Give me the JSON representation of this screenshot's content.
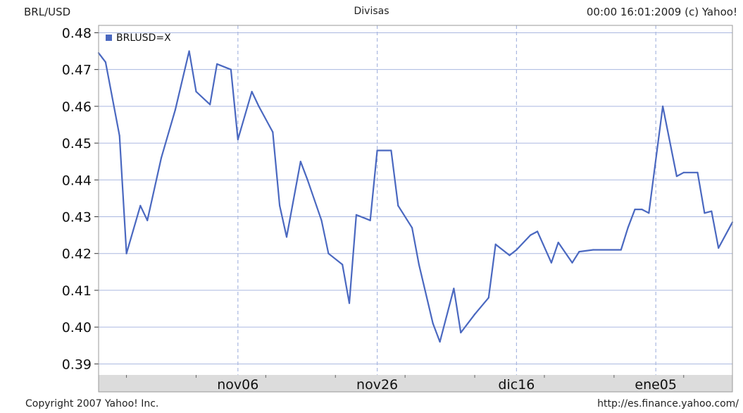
{
  "header": {
    "left": "BRL/USD",
    "center": "Divisas",
    "right": "00:00 16:01:2009 (c) Yahoo!"
  },
  "footer": {
    "left": "Copyright 2007 Yahoo! Inc.",
    "right": "http://es.finance.yahoo.com/"
  },
  "colors": {
    "line": "#4a68c0",
    "grid": "#aab8e0",
    "axis_band": "#dcdcdc",
    "frame": "#999999"
  },
  "chart_data": {
    "type": "line",
    "ylabel": "BRL/USD",
    "ylim": [
      0.387,
      0.482
    ],
    "yticks": [
      0.39,
      0.4,
      0.41,
      0.42,
      0.43,
      0.44,
      0.45,
      0.46,
      0.47,
      0.48
    ],
    "ytick_labels": [
      "0.39",
      "0.40",
      "0.41",
      "0.42",
      "0.43",
      "0.44",
      "0.45",
      "0.46",
      "0.47",
      "0.48"
    ],
    "xlim": [
      "2008-10-17",
      "2009-01-16"
    ],
    "xticks": [
      "2008-11-06",
      "2008-11-26",
      "2008-12-16",
      "2009-01-05"
    ],
    "xtick_labels": [
      "nov06",
      "nov26",
      "dic16",
      "ene05"
    ],
    "grid": true,
    "legend_position": "top-left",
    "series": [
      {
        "name": "BRLUSD=X",
        "points": [
          [
            "2008-10-17",
            0.4745
          ],
          [
            "2008-10-18",
            0.472
          ],
          [
            "2008-10-20",
            0.452
          ],
          [
            "2008-10-21",
            0.42
          ],
          [
            "2008-10-23",
            0.433
          ],
          [
            "2008-10-24",
            0.429
          ],
          [
            "2008-10-26",
            0.446
          ],
          [
            "2008-10-28",
            0.459
          ],
          [
            "2008-10-30",
            0.475
          ],
          [
            "2008-10-31",
            0.464
          ],
          [
            "2008-11-02",
            0.4605
          ],
          [
            "2008-11-03",
            0.4715
          ],
          [
            "2008-11-05",
            0.47
          ],
          [
            "2008-11-06",
            0.451
          ],
          [
            "2008-11-08",
            0.464
          ],
          [
            "2008-11-09",
            0.46
          ],
          [
            "2008-11-11",
            0.453
          ],
          [
            "2008-11-12",
            0.433
          ],
          [
            "2008-11-13",
            0.4245
          ],
          [
            "2008-11-15",
            0.445
          ],
          [
            "2008-11-16",
            0.44
          ],
          [
            "2008-11-18",
            0.429
          ],
          [
            "2008-11-19",
            0.42
          ],
          [
            "2008-11-21",
            0.417
          ],
          [
            "2008-11-22",
            0.4065
          ],
          [
            "2008-11-23",
            0.4305
          ],
          [
            "2008-11-25",
            0.429
          ],
          [
            "2008-11-26",
            0.448
          ],
          [
            "2008-11-28",
            0.448
          ],
          [
            "2008-11-29",
            0.433
          ],
          [
            "2008-12-01",
            0.427
          ],
          [
            "2008-12-02",
            0.417
          ],
          [
            "2008-12-04",
            0.401
          ],
          [
            "2008-12-05",
            0.396
          ],
          [
            "2008-12-07",
            0.4105
          ],
          [
            "2008-12-08",
            0.3985
          ],
          [
            "2008-12-10",
            0.4035
          ],
          [
            "2008-12-12",
            0.408
          ],
          [
            "2008-12-13",
            0.4225
          ],
          [
            "2008-12-15",
            0.4195
          ],
          [
            "2008-12-16",
            0.421
          ],
          [
            "2008-12-18",
            0.425
          ],
          [
            "2008-12-19",
            0.426
          ],
          [
            "2008-12-21",
            0.4175
          ],
          [
            "2008-12-22",
            0.423
          ],
          [
            "2008-12-24",
            0.4175
          ],
          [
            "2008-12-25",
            0.4205
          ],
          [
            "2008-12-27",
            0.421
          ],
          [
            "2008-12-31",
            0.421
          ],
          [
            "2009-01-01",
            0.427
          ],
          [
            "2009-01-02",
            0.432
          ],
          [
            "2009-01-03",
            0.432
          ],
          [
            "2009-01-04",
            0.431
          ],
          [
            "2009-01-06",
            0.46
          ],
          [
            "2009-01-08",
            0.441
          ],
          [
            "2009-01-09",
            0.442
          ],
          [
            "2009-01-11",
            0.442
          ],
          [
            "2009-01-12",
            0.431
          ],
          [
            "2009-01-13",
            0.4315
          ],
          [
            "2009-01-14",
            0.4215
          ],
          [
            "2009-01-16",
            0.4285
          ]
        ]
      }
    ]
  }
}
